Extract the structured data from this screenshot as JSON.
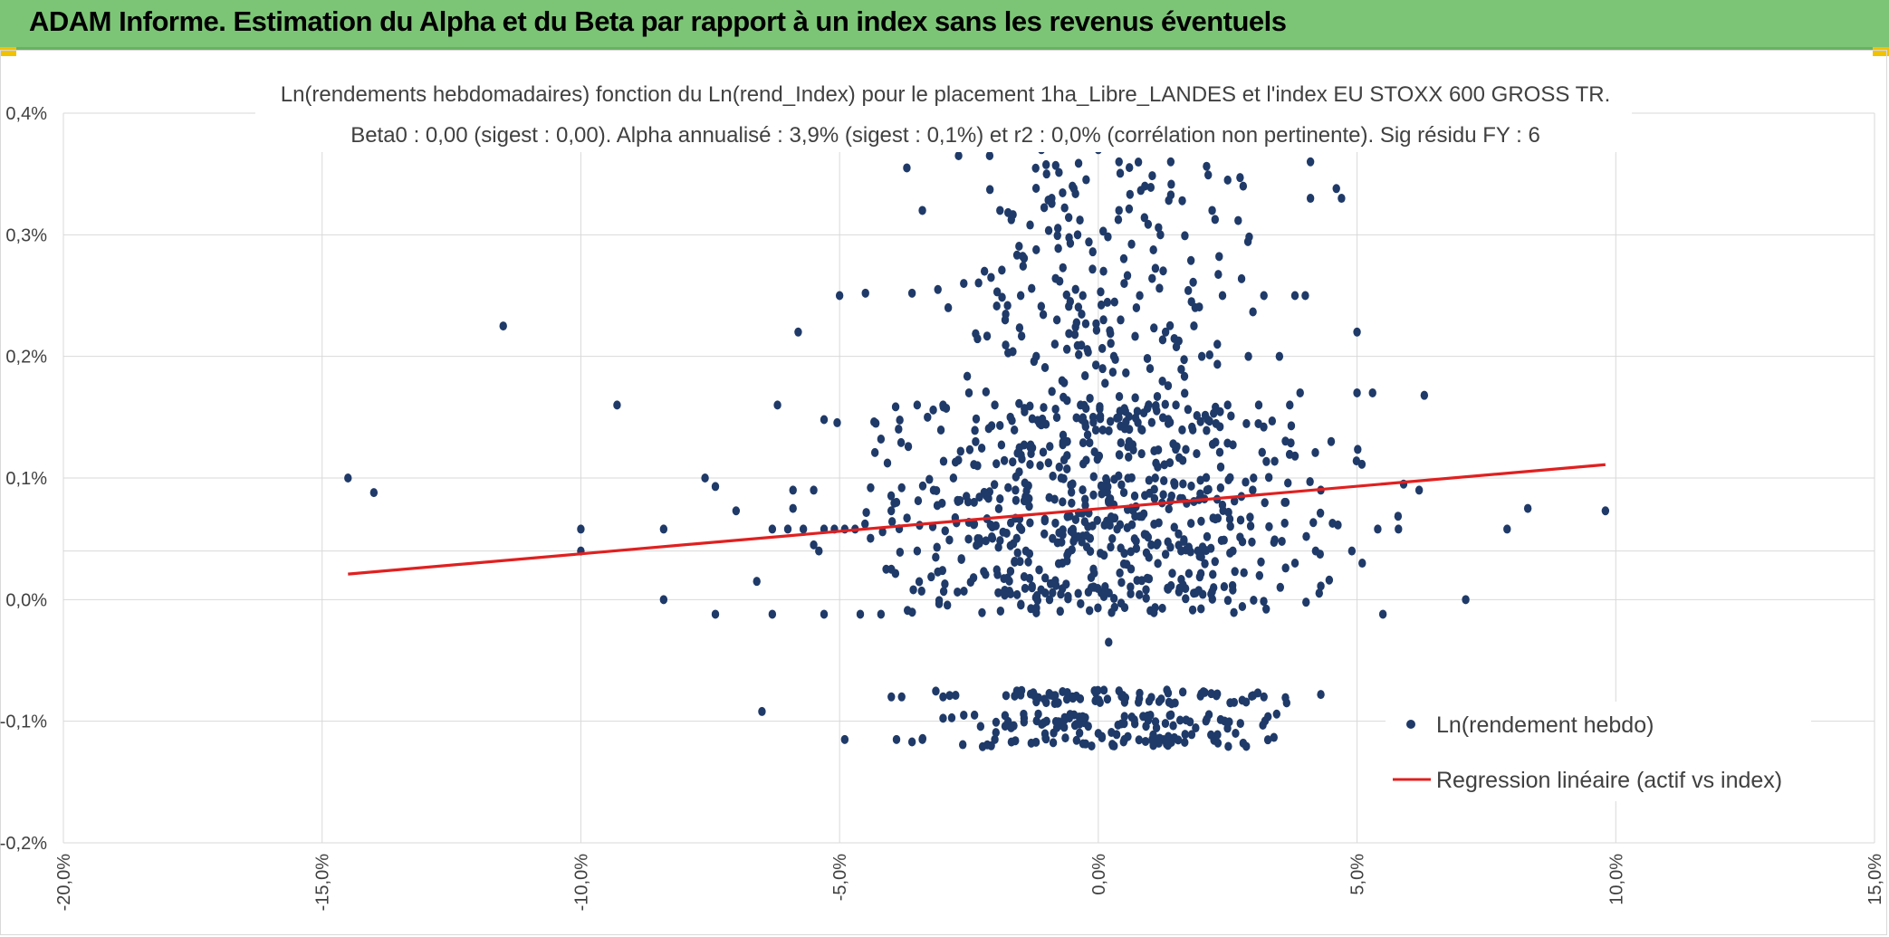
{
  "header": {
    "title": "ADAM Informe. Estimation du Alpha et du Beta par rapport à un index sans les revenus éventuels"
  },
  "colors": {
    "header_bg": "#7cc576",
    "points": "#1f3a68",
    "regression": "#e02020",
    "grid": "#d9d9d9"
  },
  "chart_data": {
    "type": "scatter",
    "title_line1": "Ln(rendements hebdomadaires) fonction du Ln(rend_Index) pour le placement 1ha_Libre_LANDES et l'index EU STOXX 600 GROSS TR.",
    "title_line2": "Beta0 : 0,00 (sigest : 0,00). Alpha annualisé : 3,9% (sigest : 0,1%) et r2 : 0,0% (corrélation non pertinente). Sig résidu FY : 6",
    "xlabel": "",
    "ylabel": "",
    "xlim": [
      -20,
      15
    ],
    "ylim": [
      -0.2,
      0.4
    ],
    "x_ticks": [
      "-20,0%",
      "-15,0%",
      "-10,0%",
      "-5,0%",
      "0,0%",
      "5,0%",
      "10,0%",
      "15,0%"
    ],
    "y_ticks": [
      "0,4%",
      "0,3%",
      "0,2%",
      "0,1%",
      "0,0%",
      "-0,1%",
      "-0,2%"
    ],
    "grid": true,
    "legend_position": "bottom-right",
    "series": [
      {
        "name": "Ln(rendement hebdo)",
        "type": "scatter",
        "points": [
          [
            -14.5,
            0.1
          ],
          [
            -14,
            0.088
          ],
          [
            -11.5,
            0.225
          ],
          [
            -10,
            0.058
          ],
          [
            -10,
            0.04
          ],
          [
            -9.3,
            0.16
          ],
          [
            -8.4,
            0.058
          ],
          [
            -8.4,
            0.0
          ],
          [
            -7.6,
            0.1
          ],
          [
            -7.4,
            0.093
          ],
          [
            -7.4,
            -0.012
          ],
          [
            -7.0,
            0.073
          ],
          [
            -6.6,
            0.015
          ],
          [
            -6.5,
            -0.092
          ],
          [
            -6.3,
            0.058
          ],
          [
            -6.3,
            -0.012
          ],
          [
            -6.2,
            0.16
          ],
          [
            -6.0,
            0.058
          ],
          [
            -5.9,
            0.09
          ],
          [
            -5.9,
            0.075
          ],
          [
            -5.8,
            0.22
          ],
          [
            -5.7,
            0.058
          ],
          [
            -5.5,
            0.09
          ],
          [
            -5.5,
            0.045
          ],
          [
            -5.4,
            0.04
          ],
          [
            -5.3,
            0.058
          ],
          [
            -5.3,
            0.148
          ],
          [
            -5.3,
            -0.012
          ],
          [
            -5.1,
            0.058
          ],
          [
            -5.0,
            0.25
          ],
          [
            -4.9,
            0.058
          ],
          [
            -4.9,
            -0.115
          ],
          [
            -4.7,
            0.058
          ],
          [
            -4.6,
            -0.012
          ],
          [
            -4.5,
            0.252
          ],
          [
            -4.4,
            0.092
          ],
          [
            -4.3,
            0.145
          ],
          [
            -4.2,
            0.132
          ],
          [
            -4.2,
            -0.012
          ],
          [
            -4.1,
            0.025
          ],
          [
            -4.0,
            0.025
          ],
          [
            -4.0,
            -0.08
          ],
          [
            -3.9,
            0.08
          ],
          [
            -3.9,
            -0.115
          ],
          [
            -3.8,
            0.092
          ],
          [
            -3.8,
            -0.08
          ],
          [
            -3.7,
            0.355
          ],
          [
            -3.6,
            0.252
          ],
          [
            -3.6,
            -0.117
          ],
          [
            -3.5,
            0.16
          ],
          [
            -3.5,
            0.04
          ],
          [
            -3.4,
            0.32
          ],
          [
            -3.4,
            -0.115
          ],
          [
            -3.3,
            0.15
          ],
          [
            -3.2,
            0.06
          ],
          [
            -3.1,
            0.255
          ],
          [
            -3.0,
            0.16
          ],
          [
            -3.0,
            -0.08
          ],
          [
            -2.9,
            0.24
          ],
          [
            -2.8,
            0.1
          ],
          [
            -2.7,
            0.365
          ],
          [
            -2.6,
            0.26
          ],
          [
            -2.6,
            -0.095
          ],
          [
            -2.5,
            0.17
          ],
          [
            -2.4,
            0.08
          ],
          [
            -2.3,
            0.05
          ],
          [
            -2.2,
            0.27
          ],
          [
            -2.1,
            0.365
          ],
          [
            -2.0,
            0.16
          ],
          [
            -2.0,
            -0.115
          ],
          [
            -1.9,
            0.32
          ],
          [
            -1.8,
            0.23
          ],
          [
            -1.7,
            0.15
          ],
          [
            -1.6,
            0.09
          ],
          [
            -1.5,
            0.25
          ],
          [
            -1.4,
            0.04
          ],
          [
            -1.3,
            0.12
          ],
          [
            -1.2,
            0.2
          ],
          [
            -1.1,
            0.37
          ],
          [
            -1.0,
            0.35
          ],
          [
            -1.0,
            -0.1
          ],
          [
            -0.9,
            0.33
          ],
          [
            -0.8,
            0.23
          ],
          [
            -0.7,
            0.18
          ],
          [
            -0.6,
            0.13
          ],
          [
            -0.5,
            0.34
          ],
          [
            -0.4,
            0.3
          ],
          [
            -0.3,
            0.25
          ],
          [
            -0.2,
            0.06
          ],
          [
            -0.1,
            0.15
          ],
          [
            0.0,
            0.37
          ],
          [
            0.0,
            -0.11
          ],
          [
            0.1,
            0.27
          ],
          [
            0.2,
            0.08
          ],
          [
            0.2,
            -0.035
          ],
          [
            0.3,
            0.2
          ],
          [
            0.4,
            0.36
          ],
          [
            0.4,
            0.32
          ],
          [
            0.5,
            0.26
          ],
          [
            0.6,
            0.14
          ],
          [
            0.7,
            0.05
          ],
          [
            0.8,
            0.25
          ],
          [
            0.9,
            0.34
          ],
          [
            1.0,
            0.19
          ],
          [
            1.1,
            0.1
          ],
          [
            1.2,
            0.3
          ],
          [
            1.3,
            0.22
          ],
          [
            1.4,
            0.36
          ],
          [
            1.5,
            0.16
          ],
          [
            1.6,
            0.04
          ],
          [
            1.8,
            0.245
          ],
          [
            1.9,
            0.12
          ],
          [
            2.0,
            0.2
          ],
          [
            2.1,
            0.09
          ],
          [
            2.2,
            0.32
          ],
          [
            2.3,
            0.21
          ],
          [
            2.4,
            0.25
          ],
          [
            2.5,
            0.16
          ],
          [
            2.5,
            0.345
          ],
          [
            2.6,
            0.04
          ],
          [
            2.8,
            0.34
          ],
          [
            2.8,
            -0.118
          ],
          [
            2.9,
            0.2
          ],
          [
            3.0,
            0.1
          ],
          [
            3.1,
            0.16
          ],
          [
            3.2,
            0.25
          ],
          [
            3.2,
            -0.08
          ],
          [
            3.3,
            0.06
          ],
          [
            3.5,
            0.2
          ],
          [
            3.6,
            0.08
          ],
          [
            3.7,
            0.16
          ],
          [
            3.8,
            0.25
          ],
          [
            3.9,
            0.17
          ],
          [
            4.0,
            0.25
          ],
          [
            4.1,
            0.36
          ],
          [
            4.1,
            0.33
          ],
          [
            4.2,
            0.04
          ],
          [
            4.3,
            0.09
          ],
          [
            4.3,
            -0.078
          ],
          [
            4.5,
            0.13
          ],
          [
            4.6,
            0.338
          ],
          [
            4.7,
            0.33
          ],
          [
            4.9,
            0.04
          ],
          [
            5.0,
            0.22
          ],
          [
            5.0,
            0.17
          ],
          [
            5.1,
            0.03
          ],
          [
            5.3,
            0.17
          ],
          [
            5.4,
            0.058
          ],
          [
            5.5,
            -0.012
          ],
          [
            5.8,
            0.058
          ],
          [
            5.9,
            0.095
          ],
          [
            6.2,
            0.09
          ],
          [
            6.3,
            0.168
          ],
          [
            7.1,
            0.0
          ],
          [
            7.9,
            0.058
          ],
          [
            8.3,
            0.075
          ],
          [
            9.8,
            0.073
          ]
        ]
      },
      {
        "name": "Regression linéaire (actif vs index)",
        "type": "line",
        "points": [
          [
            -14.5,
            0.021
          ],
          [
            9.8,
            0.111
          ]
        ]
      }
    ]
  }
}
